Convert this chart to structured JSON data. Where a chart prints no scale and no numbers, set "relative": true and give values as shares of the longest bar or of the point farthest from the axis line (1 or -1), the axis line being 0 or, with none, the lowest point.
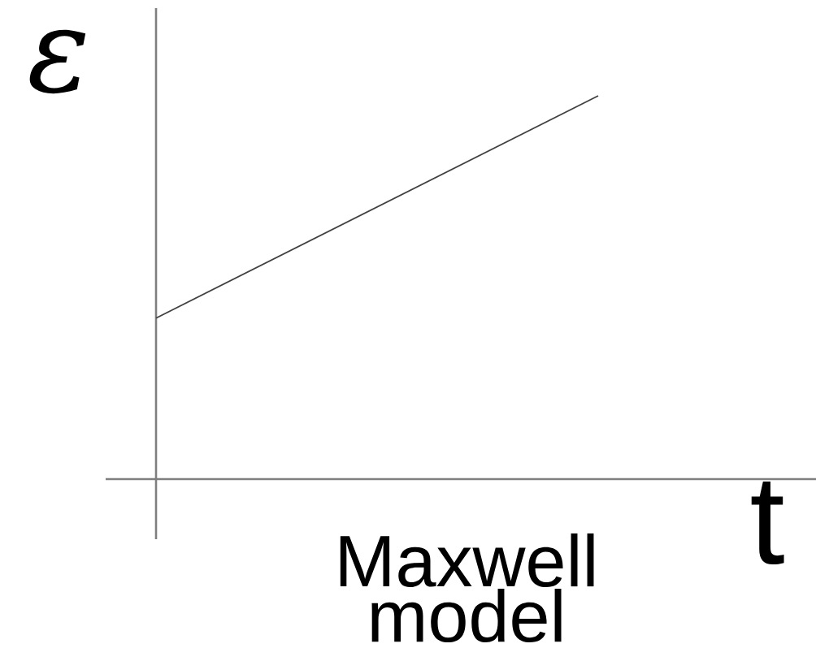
{
  "chart_data": {
    "type": "line",
    "relative": true,
    "categories": [
      null,
      null
    ],
    "values": [
      0.42,
      1
    ],
    "color": "#404040",
    "xlabel": "t",
    "ylabel": "ε",
    "annotations": [
      "Maxwell model"
    ]
  }
}
